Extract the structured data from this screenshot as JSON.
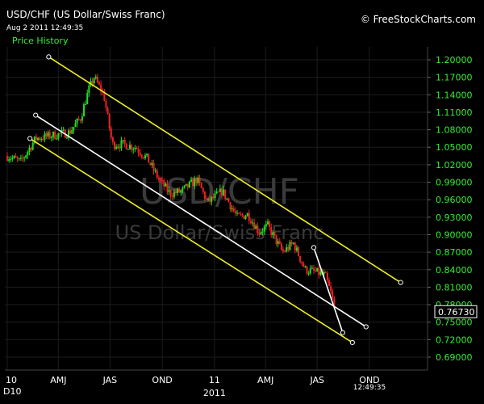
{
  "header": {
    "title": "USD/CHF (US Dollar/Swiss Franc)",
    "timestamp": "Aug 2 2011 12:49:35",
    "series_label": "Price History",
    "brand": "© FreeStockCharts.com"
  },
  "watermark": {
    "symbol": "USD/CHF",
    "name": "US Dollar/Swiss Franc"
  },
  "colors": {
    "background": "#000000",
    "up_candle": "#22dd22",
    "down_candle": "#ee2222",
    "price_text": "#33ee33",
    "channel_line": "#eeee22",
    "trend_line": "#ffffff",
    "grid": "#1c1c1c"
  },
  "chart_data": {
    "type": "candlestick",
    "title": "USD/CHF (US Dollar/Swiss Franc)",
    "series_name": "Price History",
    "ylim": [
      0.675,
      1.215
    ],
    "y_ticks": [
      0.69,
      0.72,
      0.75,
      0.78,
      0.81,
      0.84,
      0.87,
      0.9,
      0.93,
      0.96,
      0.99,
      1.02,
      1.05,
      1.08,
      1.11,
      1.14,
      1.17,
      1.2
    ],
    "y_tick_labels": [
      "0.69000",
      "0.72000",
      "0.75000",
      "0.78000",
      "0.81000",
      "0.84000",
      "0.87000",
      "0.90000",
      "0.93000",
      "0.96000",
      "0.99000",
      "1.02000",
      "1.05000",
      "1.08000",
      "1.11000",
      "1.14000",
      "1.17000",
      "1.20000"
    ],
    "x_range": [
      "2010-01-01",
      "2011-12-31"
    ],
    "x_ticks": [
      {
        "date": "2010-01-01",
        "label": "10"
      },
      {
        "date": "2010-04-01",
        "label": "AMJ"
      },
      {
        "date": "2010-07-01",
        "label": "JAS"
      },
      {
        "date": "2010-10-01",
        "label": "OND"
      },
      {
        "date": "2011-01-01",
        "label": "11"
      },
      {
        "date": "2011-04-01",
        "label": "AMJ"
      },
      {
        "date": "2011-07-01",
        "label": "JAS"
      },
      {
        "date": "2011-10-01",
        "label": "OND"
      }
    ],
    "x_secondary_labels": [
      "D10",
      "2011"
    ],
    "x_time_label": "12:49:35",
    "last_price": 0.7673,
    "last_price_label": "0.76730",
    "grid": true,
    "price_path": [
      {
        "date": "2010-01-01",
        "value": 1.035
      },
      {
        "date": "2010-01-25",
        "value": 1.025
      },
      {
        "date": "2010-02-20",
        "value": 1.065
      },
      {
        "date": "2010-03-20",
        "value": 1.07
      },
      {
        "date": "2010-04-20",
        "value": 1.075
      },
      {
        "date": "2010-05-10",
        "value": 1.1
      },
      {
        "date": "2010-05-25",
        "value": 1.15
      },
      {
        "date": "2010-06-03",
        "value": 1.17
      },
      {
        "date": "2010-06-20",
        "value": 1.14
      },
      {
        "date": "2010-07-05",
        "value": 1.055
      },
      {
        "date": "2010-07-25",
        "value": 1.055
      },
      {
        "date": "2010-08-15",
        "value": 1.05
      },
      {
        "date": "2010-09-05",
        "value": 1.03
      },
      {
        "date": "2010-09-25",
        "value": 0.995
      },
      {
        "date": "2010-10-15",
        "value": 0.97
      },
      {
        "date": "2010-11-05",
        "value": 0.975
      },
      {
        "date": "2010-12-01",
        "value": 0.995
      },
      {
        "date": "2010-12-20",
        "value": 0.955
      },
      {
        "date": "2011-01-15",
        "value": 0.975
      },
      {
        "date": "2011-02-10",
        "value": 0.93
      },
      {
        "date": "2011-03-01",
        "value": 0.935
      },
      {
        "date": "2011-03-20",
        "value": 0.905
      },
      {
        "date": "2011-04-05",
        "value": 0.915
      },
      {
        "date": "2011-05-01",
        "value": 0.87
      },
      {
        "date": "2011-05-20",
        "value": 0.885
      },
      {
        "date": "2011-06-10",
        "value": 0.84
      },
      {
        "date": "2011-07-01",
        "value": 0.835
      },
      {
        "date": "2011-07-15",
        "value": 0.83
      },
      {
        "date": "2011-07-25",
        "value": 0.8
      },
      {
        "date": "2011-08-02",
        "value": 0.7673
      }
    ],
    "drawn_lines": [
      {
        "name": "upper-channel-line",
        "color": "channel_line",
        "from": {
          "date": "2010-03-15",
          "value": 1.205
        },
        "to": {
          "date": "2011-11-25",
          "value": 0.818
        }
      },
      {
        "name": "lower-channel-line",
        "color": "channel_line",
        "from": {
          "date": "2010-02-10",
          "value": 1.065
        },
        "to": {
          "date": "2011-09-01",
          "value": 0.715
        }
      },
      {
        "name": "long-trend-line",
        "color": "trend_line",
        "from": {
          "date": "2010-02-20",
          "value": 1.105
        },
        "to": {
          "date": "2011-09-25",
          "value": 0.742
        }
      },
      {
        "name": "short-trend-line",
        "color": "trend_line",
        "from": {
          "date": "2011-06-25",
          "value": 0.878
        },
        "to": {
          "date": "2011-08-15",
          "value": 0.732
        }
      }
    ]
  }
}
